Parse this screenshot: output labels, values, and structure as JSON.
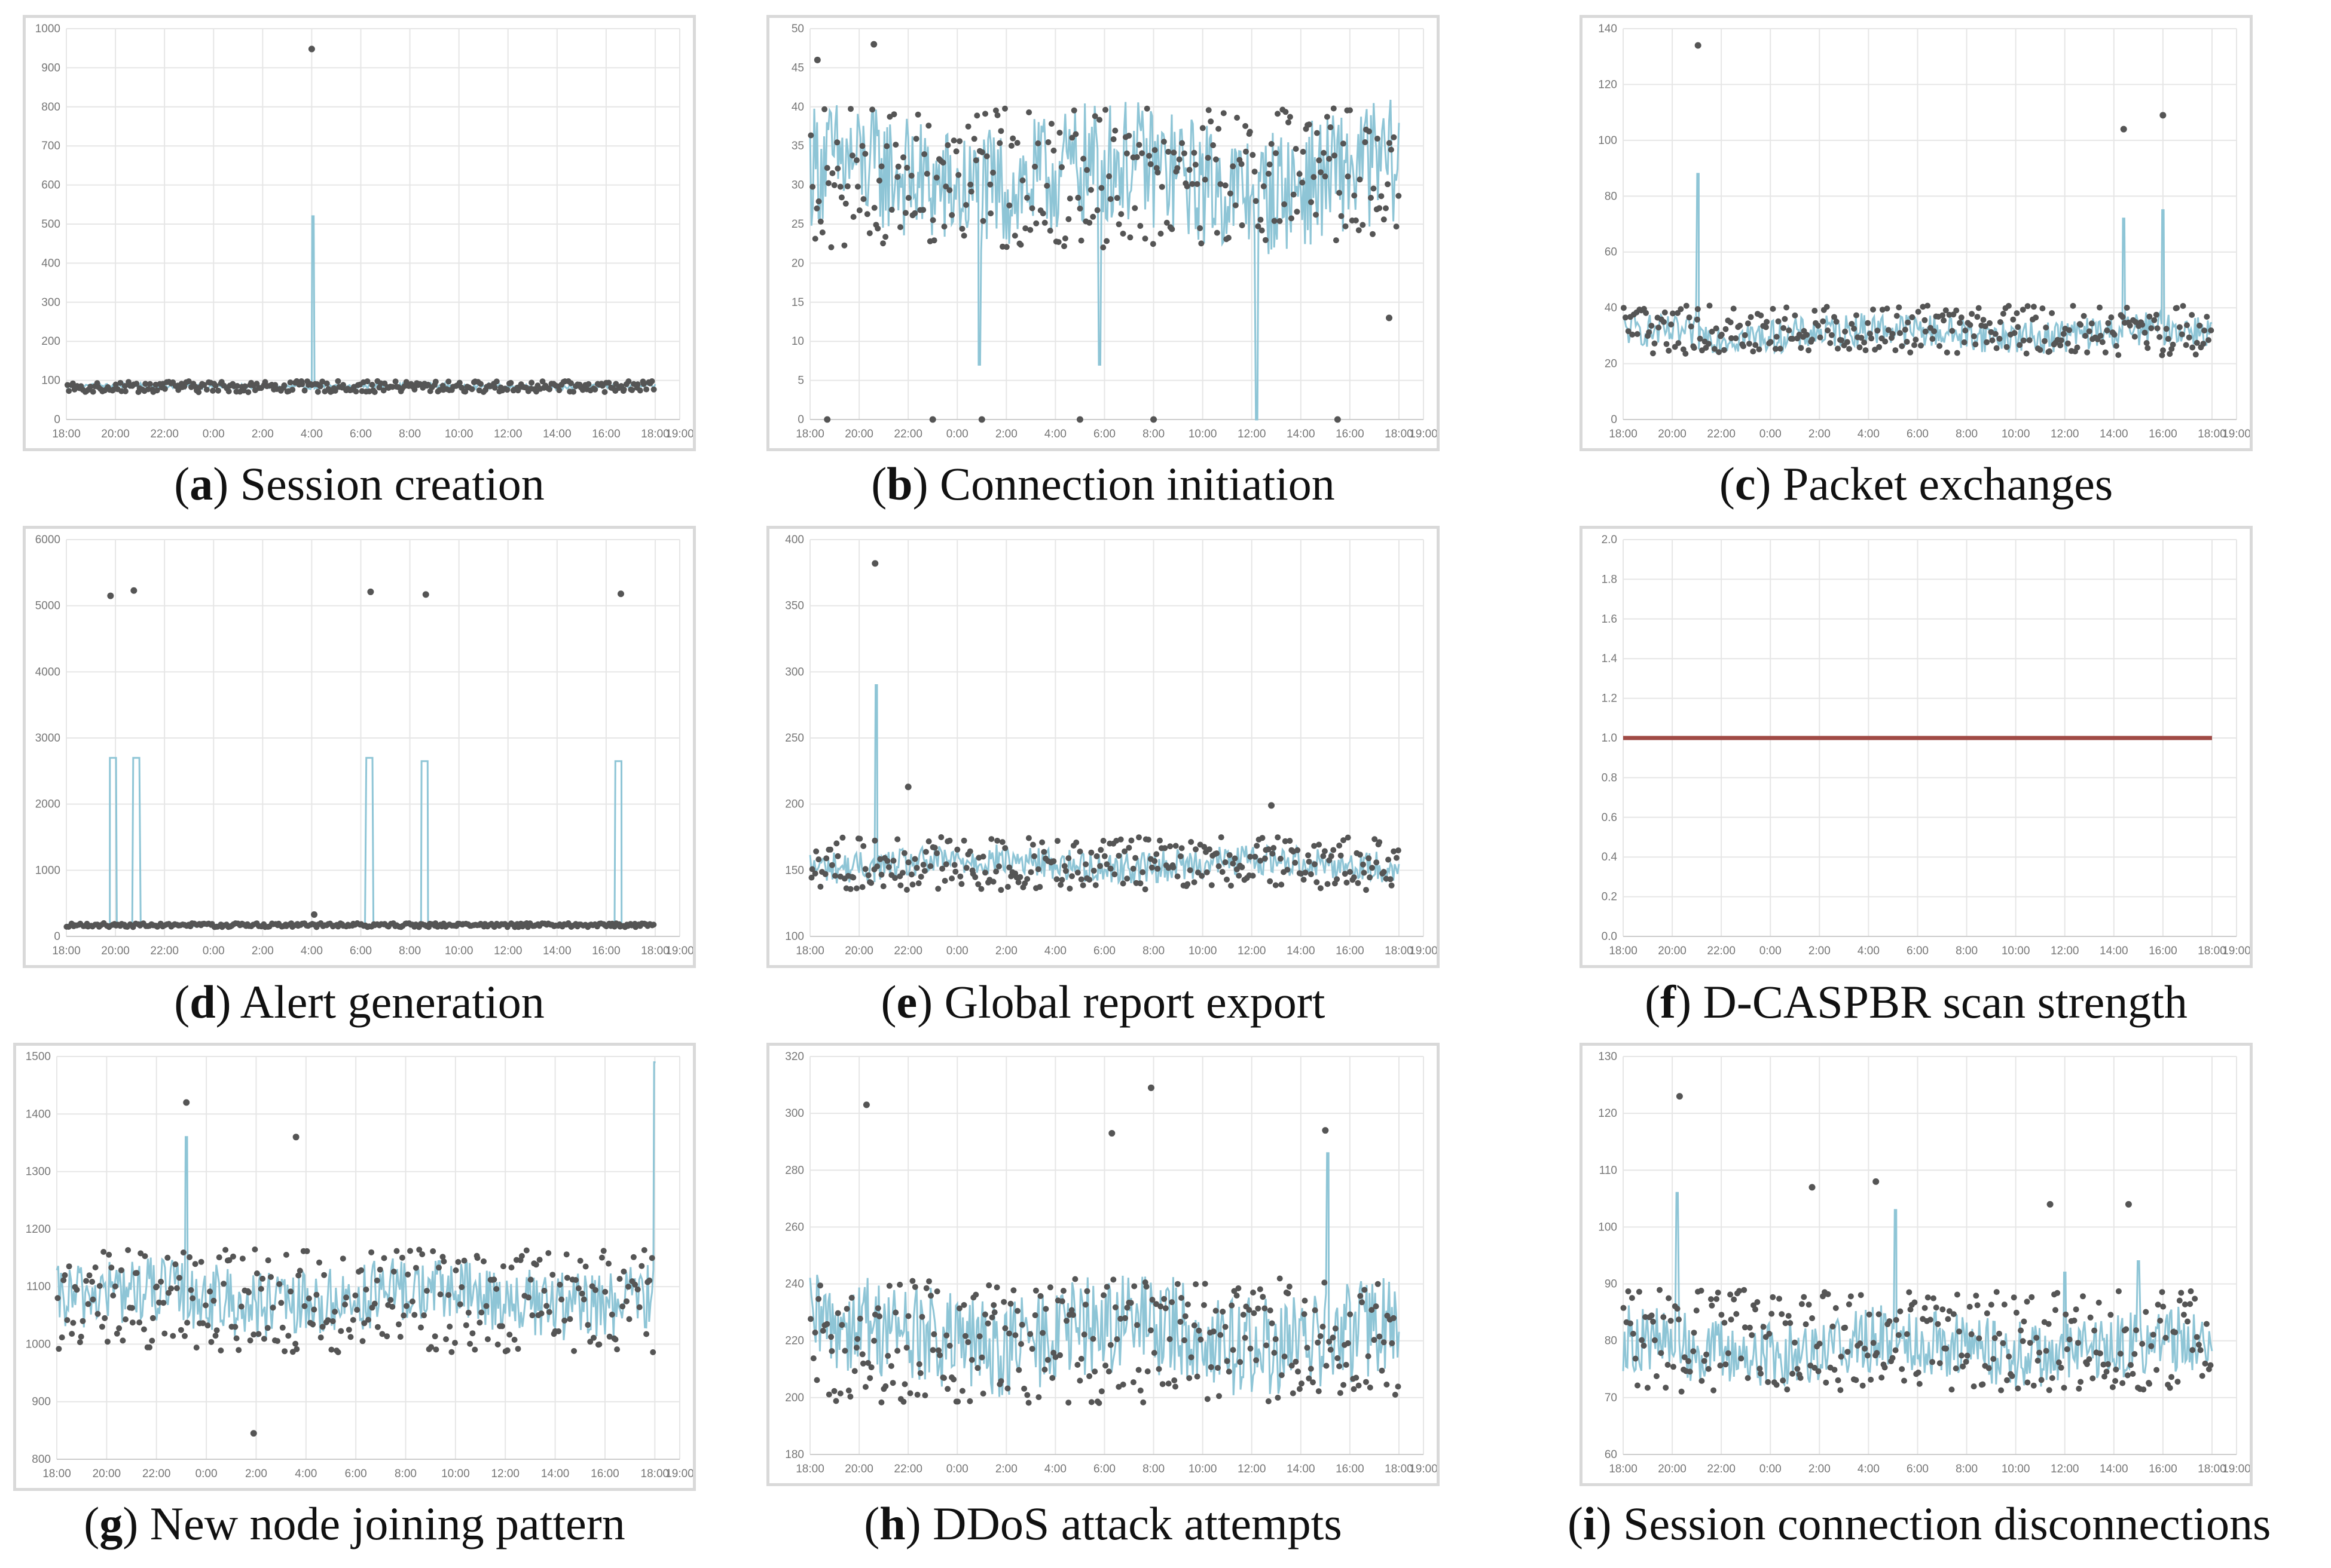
{
  "colors": {
    "line": "#8ec5d6",
    "dot": "#555555",
    "flat": "#a04a45",
    "grid": "#e6e6e6",
    "frame": "#d9d9d9"
  },
  "x_tick_labels": [
    "18:00",
    "20:00",
    "22:00",
    "0:00",
    "2:00",
    "4:00",
    "6:00",
    "8:00",
    "10:00",
    "12:00",
    "14:00",
    "16:00",
    "18:00",
    "19:00"
  ],
  "chart_data": [
    {
      "id": "a",
      "letter": "a",
      "title": "Session creation",
      "type": "line+scatter",
      "x_range_hours": [
        0,
        25
      ],
      "series_end_hour": 24,
      "ylim": [
        0,
        1000
      ],
      "yticks": [
        0,
        100,
        200,
        300,
        400,
        500,
        600,
        700,
        800,
        900,
        1000
      ],
      "line": {
        "base": 85,
        "amp": 6,
        "noise_freq": 0.6,
        "spikes": [
          {
            "x": 10.05,
            "y": 520
          }
        ]
      },
      "dots": {
        "base": 84,
        "amp": 14,
        "outliers": [
          {
            "x": 10.0,
            "y": 948
          }
        ]
      }
    },
    {
      "id": "b",
      "letter": "b",
      "title": "Connection initiation",
      "type": "line+scatter",
      "x_range_hours": [
        0,
        25
      ],
      "series_end_hour": 24,
      "ylim": [
        0,
        50
      ],
      "yticks": [
        0,
        5,
        10,
        15,
        20,
        25,
        30,
        35,
        40,
        45,
        50
      ],
      "line": {
        "base": 31,
        "amp": 8,
        "noise_freq": 1.0,
        "spikes": [
          {
            "x": 18.2,
            "y": 0
          },
          {
            "x": 6.9,
            "y": 7
          },
          {
            "x": 11.8,
            "y": 7
          }
        ]
      },
      "dots": {
        "base": 31,
        "amp": 9,
        "outliers": [
          {
            "x": 0.3,
            "y": 46
          },
          {
            "x": 2.6,
            "y": 48
          },
          {
            "x": 0.7,
            "y": 0
          },
          {
            "x": 5.0,
            "y": 0
          },
          {
            "x": 7.0,
            "y": 0
          },
          {
            "x": 11.0,
            "y": 0
          },
          {
            "x": 14.0,
            "y": 0
          },
          {
            "x": 21.5,
            "y": 0
          },
          {
            "x": 23.6,
            "y": 13
          }
        ]
      }
    },
    {
      "id": "c",
      "letter": "c",
      "title": "Packet exchanges",
      "type": "line+scatter",
      "x_range_hours": [
        0,
        25
      ],
      "series_end_hour": 24,
      "ylim": [
        0,
        140
      ],
      "yticks": [
        0,
        20,
        40,
        60,
        80,
        100,
        120,
        140
      ],
      "line": {
        "base": 31,
        "amp": 6,
        "noise_freq": 1.2,
        "spikes": [
          {
            "x": 3.05,
            "y": 88
          },
          {
            "x": 20.4,
            "y": 72
          },
          {
            "x": 22.0,
            "y": 75
          }
        ]
      },
      "dots": {
        "base": 32,
        "amp": 9,
        "outliers": [
          {
            "x": 3.05,
            "y": 134
          },
          {
            "x": 20.4,
            "y": 104
          },
          {
            "x": 22.0,
            "y": 109
          }
        ]
      }
    },
    {
      "id": "d",
      "letter": "d",
      "title": "Alert generation",
      "type": "line+scatter",
      "x_range_hours": [
        0,
        25
      ],
      "series_end_hour": 24,
      "ylim": [
        0,
        6000
      ],
      "yticks": [
        0,
        1000,
        2000,
        3000,
        4000,
        5000,
        6000
      ],
      "line": {
        "base": 170,
        "amp": 15,
        "noise_freq": 0.6,
        "spikes": [
          {
            "x": 1.9,
            "y": 2700,
            "w": 0.25
          },
          {
            "x": 2.85,
            "y": 2700,
            "w": 0.25
          },
          {
            "x": 12.35,
            "y": 2700,
            "w": 0.25
          },
          {
            "x": 14.6,
            "y": 2650,
            "w": 0.25
          },
          {
            "x": 22.5,
            "y": 2650,
            "w": 0.25
          }
        ]
      },
      "dots": {
        "base": 170,
        "amp": 30,
        "outliers": [
          {
            "x": 1.8,
            "y": 5150
          },
          {
            "x": 2.75,
            "y": 5230
          },
          {
            "x": 12.4,
            "y": 5210
          },
          {
            "x": 14.65,
            "y": 5170
          },
          {
            "x": 22.6,
            "y": 5180
          },
          {
            "x": 10.1,
            "y": 330
          }
        ]
      }
    },
    {
      "id": "e",
      "letter": "e",
      "title": "Global report export",
      "type": "line+scatter",
      "x_range_hours": [
        0,
        25
      ],
      "series_end_hour": 24,
      "ylim": [
        100,
        400
      ],
      "yticks": [
        100,
        150,
        200,
        250,
        300,
        350,
        400
      ],
      "line": {
        "base": 155,
        "amp": 12,
        "noise_freq": 0.9,
        "spikes": [
          {
            "x": 2.7,
            "y": 290
          }
        ]
      },
      "dots": {
        "base": 155,
        "amp": 20,
        "outliers": [
          {
            "x": 2.65,
            "y": 382
          },
          {
            "x": 4.0,
            "y": 213
          },
          {
            "x": 18.8,
            "y": 199
          }
        ]
      }
    },
    {
      "id": "f",
      "letter": "f",
      "title": "D-CASPBR scan strength",
      "type": "line",
      "x_range_hours": [
        0,
        25
      ],
      "series_end_hour": 24,
      "ylim": [
        0,
        2.0
      ],
      "yticks": [
        0,
        0.2,
        0.4,
        0.6,
        0.8,
        1.0,
        1.2,
        1.4,
        1.6,
        1.8,
        2.0
      ],
      "flat_value": 1.0
    },
    {
      "id": "g",
      "letter": "g",
      "title": "New node joining pattern",
      "type": "line+scatter",
      "x_range_hours": [
        0,
        25
      ],
      "series_end_hour": 24,
      "ylim": [
        800,
        1500
      ],
      "yticks": [
        800,
        900,
        1000,
        1100,
        1200,
        1300,
        1400,
        1500
      ],
      "line": {
        "base": 1080,
        "amp": 60,
        "noise_freq": 0.8,
        "spikes": [
          {
            "x": 5.2,
            "y": 1360
          },
          {
            "x": 24.0,
            "y": 1490
          }
        ]
      },
      "dots": {
        "base": 1075,
        "amp": 90,
        "outliers": [
          {
            "x": 5.2,
            "y": 1420
          },
          {
            "x": 9.6,
            "y": 1360
          },
          {
            "x": 7.9,
            "y": 845
          }
        ]
      }
    },
    {
      "id": "h",
      "letter": "h",
      "title": "DDoS attack attempts",
      "type": "line+scatter",
      "x_range_hours": [
        0,
        25
      ],
      "series_end_hour": 24,
      "ylim": [
        180,
        320
      ],
      "yticks": [
        180,
        200,
        220,
        240,
        260,
        280,
        300,
        320
      ],
      "line": {
        "base": 222,
        "amp": 18,
        "noise_freq": 1.0,
        "spikes": [
          {
            "x": 21.1,
            "y": 286
          }
        ]
      },
      "dots": {
        "base": 220,
        "amp": 22,
        "outliers": [
          {
            "x": 2.3,
            "y": 303
          },
          {
            "x": 13.9,
            "y": 309
          },
          {
            "x": 12.3,
            "y": 293
          },
          {
            "x": 21.0,
            "y": 294
          }
        ]
      }
    },
    {
      "id": "i",
      "letter": "i",
      "title": "Session connection disconnections",
      "type": "line+scatter",
      "x_range_hours": [
        0,
        25
      ],
      "series_end_hour": 24,
      "ylim": [
        60,
        130
      ],
      "yticks": [
        60,
        70,
        80,
        90,
        100,
        110,
        120,
        130
      ],
      "line": {
        "base": 79,
        "amp": 6,
        "noise_freq": 1.0,
        "spikes": [
          {
            "x": 2.2,
            "y": 106
          },
          {
            "x": 11.1,
            "y": 103
          },
          {
            "x": 18.0,
            "y": 92
          },
          {
            "x": 21.0,
            "y": 94
          }
        ]
      },
      "dots": {
        "base": 80,
        "amp": 9,
        "outliers": [
          {
            "x": 2.3,
            "y": 123
          },
          {
            "x": 7.7,
            "y": 107
          },
          {
            "x": 10.3,
            "y": 108
          },
          {
            "x": 17.4,
            "y": 104
          },
          {
            "x": 20.6,
            "y": 104
          }
        ]
      }
    }
  ]
}
